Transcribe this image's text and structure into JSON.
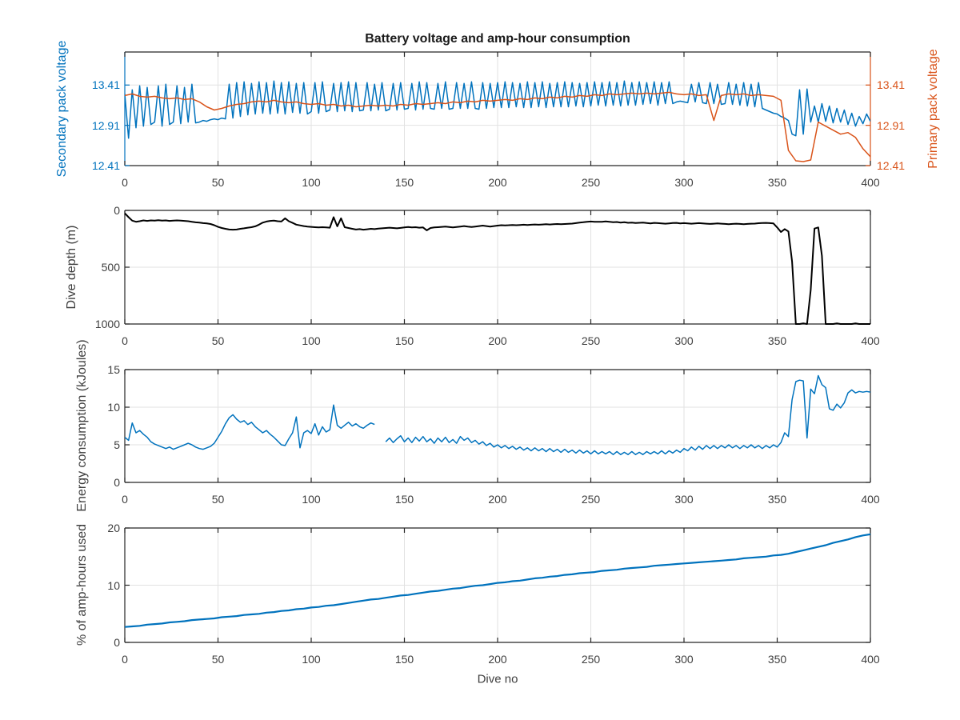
{
  "figure": {
    "xlabel": "Dive no",
    "colors": {
      "blue": "#0072BD",
      "orange": "#D95319",
      "black": "#000000",
      "grid": "#e2e2e2",
      "axis": "#262626",
      "tick_text": "#3f3f3f"
    }
  },
  "chart_data": [
    {
      "id": "voltage",
      "type": "line",
      "title": "Battery voltage and amp-hour consumption",
      "xlim": [
        0,
        400
      ],
      "xticks": [
        0,
        50,
        100,
        150,
        200,
        250,
        300,
        350,
        400
      ],
      "left_axis": {
        "label": "Secondary pack voltage",
        "color": "#0072BD",
        "ylim": [
          12.41,
          13.82
        ],
        "yticks": [
          12.41,
          12.91,
          13.41
        ]
      },
      "right_axis": {
        "label": "Primary pack voltage",
        "color": "#D95319",
        "ylim": [
          12.41,
          13.82
        ],
        "yticks": [
          12.41,
          12.91,
          13.41
        ]
      },
      "series": [
        {
          "name": "secondary-pack-voltage",
          "color": "#0072BD",
          "width": 1.5,
          "x_step": 2,
          "y": [
            13.3,
            12.75,
            13.35,
            12.88,
            13.4,
            12.9,
            13.38,
            12.92,
            12.95,
            13.4,
            12.9,
            13.42,
            12.92,
            12.95,
            13.4,
            12.93,
            13.38,
            12.95,
            13.42,
            12.94,
            12.95,
            12.97,
            12.96,
            12.98,
            12.99,
            12.98,
            13.0,
            12.99,
            13.42,
            13.0,
            13.44,
            13.02,
            13.45,
            13.04,
            13.43,
            13.05,
            13.45,
            13.06,
            13.44,
            13.05,
            13.46,
            13.06,
            13.44,
            13.05,
            13.45,
            13.07,
            13.43,
            13.06,
            13.44,
            13.05,
            13.08,
            13.44,
            13.06,
            13.45,
            13.08,
            13.1,
            13.43,
            13.08,
            13.44,
            13.09,
            13.45,
            13.08,
            13.44,
            13.09,
            13.1,
            13.44,
            13.09,
            13.42,
            13.1,
            13.44,
            13.09,
            13.11,
            13.43,
            13.1,
            13.44,
            13.11,
            13.12,
            13.43,
            13.1,
            13.45,
            13.11,
            13.44,
            13.12,
            13.11,
            13.43,
            13.12,
            13.45,
            13.11,
            13.12,
            13.44,
            13.12,
            13.43,
            13.12,
            13.45,
            13.12,
            13.11,
            13.44,
            13.12,
            13.43,
            13.13,
            13.44,
            13.13,
            13.45,
            13.13,
            13.44,
            13.14,
            13.43,
            13.13,
            13.45,
            13.13,
            13.44,
            13.14,
            13.45,
            13.13,
            13.43,
            13.14,
            13.44,
            13.14,
            13.45,
            13.14,
            13.44,
            13.15,
            13.43,
            13.14,
            13.44,
            13.15,
            13.45,
            13.16,
            13.44,
            13.15,
            13.45,
            13.16,
            13.44,
            13.15,
            13.46,
            13.16,
            13.44,
            13.16,
            13.45,
            13.17,
            13.44,
            13.18,
            13.45,
            13.16,
            13.44,
            13.18,
            13.45,
            13.18,
            13.2,
            13.21,
            13.2,
            13.19,
            13.42,
            13.2,
            13.44,
            13.19,
            13.18,
            13.44,
            13.18,
            13.42,
            13.17,
            13.18,
            13.44,
            13.17,
            13.42,
            13.16,
            13.44,
            13.15,
            13.42,
            13.14,
            13.44,
            13.12,
            13.1,
            13.08,
            13.06,
            13.05,
            13.02,
            13.0,
            12.97,
            12.8,
            12.78,
            13.35,
            12.8,
            13.36,
            12.95,
            13.15,
            12.95,
            13.18,
            12.96,
            13.15,
            12.94,
            13.12,
            12.95,
            13.1,
            12.92,
            13.06,
            12.9,
            13.02,
            12.93,
            13.05,
            12.96
          ]
        },
        {
          "name": "primary-pack-voltage",
          "color": "#D95319",
          "width": 1.5,
          "x_step": 4,
          "y": [
            13.28,
            13.3,
            13.27,
            13.26,
            13.27,
            13.25,
            13.24,
            13.25,
            13.23,
            13.24,
            13.2,
            13.14,
            13.1,
            13.12,
            13.15,
            13.17,
            13.18,
            13.2,
            13.21,
            13.2,
            13.22,
            13.2,
            13.19,
            13.2,
            13.18,
            13.17,
            13.18,
            13.16,
            13.17,
            13.15,
            13.16,
            13.14,
            13.15,
            13.16,
            13.15,
            13.16,
            13.15,
            13.17,
            13.16,
            13.18,
            13.17,
            13.18,
            13.19,
            13.18,
            13.2,
            13.19,
            13.21,
            13.2,
            13.22,
            13.21,
            13.22,
            13.23,
            13.22,
            13.24,
            13.23,
            13.25,
            13.24,
            13.26,
            13.25,
            13.27,
            13.26,
            13.28,
            13.27,
            13.29,
            13.28,
            13.3,
            13.29,
            13.3,
            13.31,
            13.3,
            13.31,
            13.3,
            13.31,
            13.32,
            13.3,
            13.29,
            13.3,
            13.28,
            13.29,
            12.97,
            13.28,
            13.3,
            13.29,
            13.3,
            13.28,
            13.29,
            13.28,
            13.27,
            13.22,
            12.6,
            12.47,
            12.46,
            12.48,
            12.95,
            12.9,
            12.85,
            12.8,
            12.82,
            12.76,
            12.62,
            12.52
          ]
        }
      ]
    },
    {
      "id": "depth",
      "type": "line",
      "ylabel": "Dive depth (m)",
      "xlim": [
        0,
        400
      ],
      "xticks": [
        0,
        50,
        100,
        150,
        200,
        250,
        300,
        350,
        400
      ],
      "ylim": [
        0,
        1000
      ],
      "reversed": true,
      "yticks": [
        0,
        500,
        1000
      ],
      "series": [
        {
          "name": "dive-depth",
          "color": "#000000",
          "width": 2,
          "x_step": 2,
          "y": [
            25,
            60,
            90,
            100,
            95,
            88,
            92,
            88,
            90,
            86,
            90,
            88,
            92,
            90,
            88,
            90,
            92,
            95,
            100,
            105,
            108,
            112,
            115,
            120,
            130,
            145,
            155,
            162,
            168,
            170,
            168,
            162,
            158,
            152,
            148,
            140,
            125,
            108,
            98,
            92,
            90,
            95,
            98,
            70,
            95,
            110,
            125,
            132,
            138,
            142,
            145,
            148,
            150,
            148,
            150,
            152,
            60,
            140,
            70,
            148,
            155,
            162,
            168,
            165,
            170,
            166,
            162,
            165,
            160,
            158,
            155,
            152,
            155,
            158,
            154,
            150,
            146,
            150,
            148,
            152,
            150,
            175,
            155,
            150,
            148,
            145,
            142,
            146,
            150,
            146,
            142,
            138,
            142,
            146,
            142,
            138,
            134,
            138,
            142,
            138,
            134,
            130,
            132,
            130,
            128,
            130,
            128,
            126,
            128,
            126,
            124,
            126,
            124,
            122,
            124,
            122,
            120,
            122,
            120,
            118,
            116,
            112,
            108,
            104,
            100,
            98,
            100,
            101,
            100,
            97,
            100,
            104,
            102,
            107,
            104,
            109,
            107,
            111,
            109,
            107,
            111,
            114,
            110,
            112,
            114,
            117,
            114,
            111,
            110,
            114,
            112,
            114,
            117,
            114,
            112,
            115,
            117,
            119,
            117,
            115,
            117,
            119,
            121,
            119,
            117,
            119,
            121,
            119,
            117,
            116,
            113,
            111,
            110,
            112,
            115,
            150,
            190,
            165,
            185,
            450,
            1000,
            1000,
            995,
            1000,
            700,
            160,
            150,
            400,
            1000,
            1000,
            1000,
            995,
            1000,
            1000,
            1000,
            1000,
            995,
            1000,
            1000,
            1000,
            1000
          ]
        }
      ]
    },
    {
      "id": "energy",
      "type": "line",
      "ylabel": "Energy consumption (kJoules)",
      "xlim": [
        0,
        400
      ],
      "xticks": [
        0,
        50,
        100,
        150,
        200,
        250,
        300,
        350,
        400
      ],
      "ylim": [
        0,
        15
      ],
      "yticks": [
        0,
        5,
        10,
        15
      ],
      "series": [
        {
          "name": "energy-consumption",
          "color": "#0072BD",
          "width": 1.5,
          "x_step": 2,
          "y": [
            6.0,
            5.6,
            7.9,
            6.6,
            6.9,
            6.4,
            6.0,
            5.4,
            5.1,
            4.9,
            4.7,
            4.5,
            4.7,
            4.4,
            4.6,
            4.8,
            5.0,
            5.2,
            5.0,
            4.7,
            4.5,
            4.4,
            4.6,
            4.8,
            5.2,
            6.0,
            6.8,
            7.8,
            8.6,
            9.0,
            8.4,
            8.0,
            8.2,
            7.7,
            8.0,
            7.4,
            7.0,
            6.6,
            6.9,
            6.4,
            6.0,
            5.5,
            5.0,
            4.9,
            5.8,
            6.6,
            8.7,
            4.6,
            6.6,
            6.9,
            6.5,
            7.8,
            6.3,
            7.4,
            6.7,
            7.0,
            10.3,
            7.6,
            7.2,
            7.6,
            8.0,
            7.5,
            7.8,
            7.4,
            7.2,
            7.6,
            7.9,
            7.7,
            null,
            null,
            5.4,
            5.9,
            5.3,
            5.8,
            6.2,
            5.4,
            5.9,
            5.3,
            6.0,
            5.5,
            6.1,
            5.4,
            5.8,
            5.2,
            5.9,
            5.4,
            6.0,
            5.3,
            5.7,
            5.2,
            6.1,
            5.6,
            5.9,
            5.3,
            5.6,
            5.1,
            5.4,
            4.9,
            5.2,
            4.7,
            5.0,
            4.6,
            4.9,
            4.5,
            4.8,
            4.4,
            4.7,
            4.3,
            4.6,
            4.2,
            4.6,
            4.2,
            4.5,
            4.1,
            4.5,
            4.1,
            4.4,
            4.0,
            4.4,
            4.0,
            4.3,
            3.9,
            4.3,
            3.9,
            4.2,
            3.8,
            4.2,
            3.8,
            4.1,
            3.8,
            4.1,
            3.7,
            4.1,
            3.7,
            4.0,
            3.7,
            4.1,
            3.7,
            4.0,
            3.7,
            4.1,
            3.8,
            4.1,
            3.8,
            4.2,
            3.8,
            4.2,
            3.9,
            4.3,
            4.0,
            4.5,
            4.2,
            4.7,
            4.3,
            4.8,
            4.4,
            4.9,
            4.5,
            4.9,
            4.5,
            4.9,
            4.6,
            5.0,
            4.6,
            4.9,
            4.5,
            4.9,
            4.6,
            5.0,
            4.6,
            4.9,
            4.5,
            4.9,
            4.6,
            5.0,
            4.7,
            5.3,
            6.6,
            6.1,
            11.0,
            13.4,
            13.6,
            13.5,
            5.9,
            12.4,
            11.8,
            14.2,
            13.0,
            12.6,
            9.8,
            9.6,
            10.4,
            9.9,
            10.6,
            11.9,
            12.3,
            11.9,
            12.1,
            12.0,
            12.1,
            12.0
          ]
        }
      ]
    },
    {
      "id": "percent",
      "type": "line",
      "ylabel": "% of amp-hours used",
      "xlabel": "Dive no",
      "xlim": [
        0,
        400
      ],
      "xticks": [
        0,
        50,
        100,
        150,
        200,
        250,
        300,
        350,
        400
      ],
      "ylim": [
        0,
        20
      ],
      "yticks": [
        0,
        10,
        20
      ],
      "series": [
        {
          "name": "percent-amp-hours-used",
          "color": "#0072BD",
          "width": 2.2,
          "x_step": 4,
          "y": [
            2.7,
            2.8,
            2.9,
            3.1,
            3.2,
            3.3,
            3.5,
            3.6,
            3.7,
            3.9,
            4.0,
            4.1,
            4.2,
            4.4,
            4.5,
            4.6,
            4.8,
            4.9,
            5.0,
            5.2,
            5.3,
            5.5,
            5.6,
            5.8,
            5.9,
            6.1,
            6.2,
            6.4,
            6.5,
            6.7,
            6.9,
            7.1,
            7.3,
            7.5,
            7.6,
            7.8,
            8.0,
            8.2,
            8.3,
            8.5,
            8.7,
            8.9,
            9.0,
            9.2,
            9.4,
            9.5,
            9.7,
            9.9,
            10.0,
            10.2,
            10.4,
            10.5,
            10.7,
            10.8,
            11.0,
            11.2,
            11.3,
            11.5,
            11.6,
            11.8,
            11.9,
            12.1,
            12.2,
            12.3,
            12.5,
            12.6,
            12.7,
            12.9,
            13.0,
            13.1,
            13.2,
            13.4,
            13.5,
            13.6,
            13.7,
            13.8,
            13.9,
            14.0,
            14.1,
            14.2,
            14.3,
            14.4,
            14.5,
            14.7,
            14.8,
            14.9,
            15.0,
            15.2,
            15.3,
            15.5,
            15.8,
            16.1,
            16.4,
            16.7,
            17.0,
            17.4,
            17.7,
            18.0,
            18.4,
            18.7,
            18.9
          ]
        }
      ]
    }
  ]
}
